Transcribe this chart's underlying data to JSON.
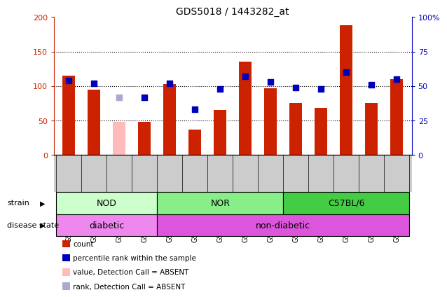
{
  "title": "GDS5018 / 1443282_at",
  "samples": [
    "GSM1133080",
    "GSM1133081",
    "GSM1133082",
    "GSM1133083",
    "GSM1133084",
    "GSM1133085",
    "GSM1133086",
    "GSM1133087",
    "GSM1133088",
    "GSM1133089",
    "GSM1133090",
    "GSM1133091",
    "GSM1133092",
    "GSM1133093"
  ],
  "count_values": [
    115,
    95,
    null,
    48,
    103,
    37,
    65,
    135,
    97,
    75,
    68,
    188,
    75,
    110
  ],
  "count_absent": [
    null,
    null,
    48,
    null,
    null,
    null,
    null,
    null,
    null,
    null,
    null,
    null,
    null,
    null
  ],
  "percentile_values": [
    54,
    52,
    null,
    42,
    52,
    33,
    48,
    57,
    53,
    49,
    48,
    60,
    51,
    55
  ],
  "percentile_absent": [
    null,
    null,
    42,
    null,
    null,
    null,
    null,
    null,
    null,
    null,
    null,
    null,
    null,
    null
  ],
  "count_color": "#cc2200",
  "count_absent_color": "#ffbbbb",
  "percentile_color": "#0000bb",
  "percentile_absent_color": "#aaaacc",
  "ylim_left": [
    0,
    200
  ],
  "ylim_right": [
    0,
    100
  ],
  "yticks_left": [
    0,
    50,
    100,
    150,
    200
  ],
  "ytick_labels_left": [
    "0",
    "50",
    "100",
    "150",
    "200"
  ],
  "ytick_labels_right": [
    "0",
    "25",
    "50",
    "75",
    "100%"
  ],
  "yticks_right": [
    0,
    25,
    50,
    75,
    100
  ],
  "strain_groups": [
    {
      "label": "NOD",
      "start": 0,
      "end": 3,
      "color": "#ccffcc"
    },
    {
      "label": "NOR",
      "start": 4,
      "end": 8,
      "color": "#88ee88"
    },
    {
      "label": "C57BL/6",
      "start": 9,
      "end": 13,
      "color": "#44cc44"
    }
  ],
  "disease_groups": [
    {
      "label": "diabetic",
      "start": 0,
      "end": 3,
      "color": "#ee88ee"
    },
    {
      "label": "non-diabetic",
      "start": 4,
      "end": 13,
      "color": "#dd55dd"
    }
  ],
  "strain_label": "strain",
  "disease_label": "disease state",
  "legend_items": [
    {
      "label": "count",
      "color": "#cc2200"
    },
    {
      "label": "percentile rank within the sample",
      "color": "#0000bb"
    },
    {
      "label": "value, Detection Call = ABSENT",
      "color": "#ffbbbb"
    },
    {
      "label": "rank, Detection Call = ABSENT",
      "color": "#aaaacc"
    }
  ],
  "bar_width": 0.5,
  "dot_size": 35,
  "background_color": "#ffffff",
  "tick_area_color": "#cccccc",
  "title_fontsize": 10,
  "tick_fontsize": 7,
  "axis_fontsize": 8
}
